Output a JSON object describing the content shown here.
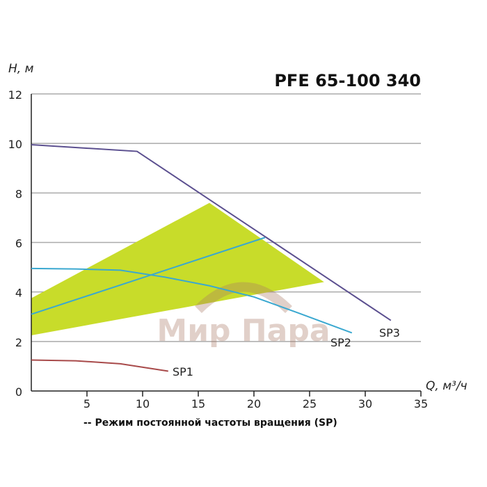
{
  "chart_data": {
    "type": "line",
    "title": "PFE 65-100 340",
    "xlabel": "Q, м³/ч",
    "ylabel": "H, м",
    "xlim": [
      0,
      35
    ],
    "ylim": [
      0,
      12
    ],
    "x_ticks": [
      "5",
      "10",
      "15",
      "20",
      "25",
      "30",
      "35"
    ],
    "y_ticks": [
      "0",
      "2",
      "4",
      "6",
      "8",
      "10",
      "12"
    ],
    "grid": "horizontal",
    "footnote": "-- Режим постоянной частоты вращения (SP)",
    "watermark": "Мир Пара",
    "series": [
      {
        "name": "SP3",
        "color": "#5b4f8f",
        "x": [
          0,
          9.5,
          32.3
        ],
        "y": [
          9.95,
          9.68,
          2.85
        ]
      },
      {
        "name": "SP2",
        "color": "#3aa8d0",
        "x": [
          0,
          4,
          8,
          12,
          16,
          20,
          24,
          28.8
        ],
        "y": [
          4.95,
          4.93,
          4.88,
          4.6,
          4.25,
          3.8,
          3.15,
          2.35
        ]
      },
      {
        "name": "SP1",
        "color": "#a84a4a",
        "x": [
          0,
          4,
          8,
          12.3
        ],
        "y": [
          1.25,
          1.22,
          1.1,
          0.8
        ]
      }
    ],
    "reference_line": {
      "color": "#3aa8d0",
      "x": [
        0,
        21
      ],
      "y": [
        3.1,
        6.2
      ]
    },
    "operating_area": {
      "color": "#c8dc2a",
      "x": [
        0,
        16,
        26.3,
        0
      ],
      "y": [
        3.75,
        7.6,
        4.4,
        2.25
      ]
    }
  }
}
